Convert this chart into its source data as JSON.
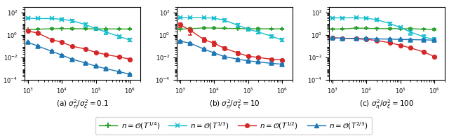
{
  "x_vals": [
    1000,
    2000,
    5000,
    10000,
    20000,
    50000,
    100000,
    200000,
    500000,
    1000000
  ],
  "subplot_titles": [
    "(a) $\\sigma_\\eta^2/\\sigma_\\xi^2 = 0.1$",
    "(b) $\\sigma_\\eta^2/\\sigma_\\xi^2 = 10$",
    "(c) $\\sigma_\\eta^2/\\sigma_\\xi^2 = 100$"
  ],
  "legend_labels": [
    "$n = \\mathcal{O}(T^{1/4})$",
    "$n = \\mathcal{O}(T^{1/3})$",
    "$n = \\mathcal{O}(T^{1/2})$",
    "$n = \\mathcal{O}(T^{2/3})$"
  ],
  "colors": [
    "#2ca02c",
    "#17becf",
    "#d62728",
    "#1f77b4"
  ],
  "markers": [
    "+",
    "x",
    "o",
    "^"
  ],
  "plot0": {
    "green": {
      "y": [
        3.0,
        3.2,
        3.5,
        3.6,
        3.5,
        3.5,
        3.4,
        3.4,
        3.3,
        3.3
      ],
      "yerr": [
        0.25,
        0.25,
        0.3,
        0.3,
        0.3,
        0.3,
        0.3,
        0.3,
        0.3,
        0.3
      ]
    },
    "cyan": {
      "y": [
        30.0,
        28.0,
        28.0,
        24.0,
        18.0,
        8.0,
        3.5,
        1.8,
        0.7,
        0.35
      ],
      "yerr": [
        3.0,
        3.0,
        3.0,
        4.0,
        5.0,
        3.0,
        1.0,
        0.6,
        0.2,
        0.1
      ]
    },
    "red": {
      "y": [
        2.2,
        1.4,
        0.38,
        0.22,
        0.1,
        0.055,
        0.028,
        0.018,
        0.011,
        0.007
      ],
      "yerr": [
        0.3,
        0.2,
        0.05,
        0.03,
        0.012,
        0.006,
        0.003,
        0.002,
        0.001,
        0.001
      ]
    },
    "blue": {
      "y": [
        0.22,
        0.1,
        0.035,
        0.016,
        0.007,
        0.0032,
        0.0017,
        0.001,
        0.00055,
        0.00032
      ],
      "yerr": [
        0.025,
        0.012,
        0.004,
        0.002,
        0.001,
        0.0004,
        0.0002,
        0.0001,
        6e-05,
        4e-05
      ]
    }
  },
  "plot1": {
    "green": {
      "y": [
        3.2,
        3.5,
        4.2,
        4.0,
        3.8,
        3.6,
        3.5,
        3.5,
        3.4,
        3.4
      ],
      "yerr": [
        0.3,
        0.3,
        0.5,
        0.4,
        0.3,
        0.3,
        0.3,
        0.3,
        0.3,
        0.3
      ]
    },
    "cyan": {
      "y": [
        33.0,
        33.0,
        33.0,
        30.0,
        20.0,
        7.0,
        3.2,
        1.8,
        0.75,
        0.35
      ],
      "yerr": [
        3.0,
        3.0,
        3.0,
        4.0,
        5.0,
        2.0,
        0.8,
        0.5,
        0.2,
        0.1
      ]
    },
    "red": {
      "y": [
        8.0,
        2.5,
        0.38,
        0.18,
        0.065,
        0.025,
        0.013,
        0.01,
        0.007,
        0.006
      ],
      "yerr": [
        3.0,
        1.5,
        0.15,
        0.08,
        0.015,
        0.006,
        0.002,
        0.002,
        0.001,
        0.001
      ]
    },
    "blue": {
      "y": [
        0.28,
        0.18,
        0.055,
        0.025,
        0.012,
        0.007,
        0.005,
        0.004,
        0.003,
        0.0025
      ],
      "yerr": [
        0.03,
        0.02,
        0.006,
        0.003,
        0.002,
        0.001,
        0.0006,
        0.0004,
        0.0003,
        0.0003
      ]
    }
  },
  "plot2": {
    "green": {
      "y": [
        3.2,
        3.4,
        4.0,
        3.8,
        3.6,
        3.6,
        3.5,
        3.5,
        3.2,
        3.0
      ],
      "yerr": [
        0.3,
        0.3,
        0.5,
        0.4,
        0.3,
        0.4,
        0.4,
        0.4,
        0.3,
        0.3
      ]
    },
    "cyan": {
      "y": [
        32.0,
        32.0,
        33.0,
        30.0,
        22.0,
        10.0,
        4.5,
        1.8,
        0.65,
        0.38
      ],
      "yerr": [
        3.0,
        3.0,
        3.0,
        4.0,
        5.0,
        2.5,
        1.2,
        0.8,
        0.3,
        0.15
      ]
    },
    "red": {
      "y": [
        0.55,
        0.5,
        0.45,
        0.4,
        0.32,
        0.2,
        0.12,
        0.07,
        0.03,
        0.012
      ],
      "yerr": [
        0.05,
        0.05,
        0.05,
        0.04,
        0.04,
        0.025,
        0.015,
        0.008,
        0.004,
        0.002
      ]
    },
    "blue": {
      "y": [
        0.55,
        0.5,
        0.48,
        0.46,
        0.44,
        0.42,
        0.4,
        0.38,
        0.36,
        0.34
      ],
      "yerr": [
        0.05,
        0.05,
        0.05,
        0.05,
        0.04,
        0.04,
        0.04,
        0.04,
        0.04,
        0.04
      ]
    }
  },
  "xlim": [
    800,
    2000000
  ],
  "ylim": [
    0.0001,
    300
  ],
  "figsize": [
    6.4,
    1.97
  ],
  "dpi": 100
}
